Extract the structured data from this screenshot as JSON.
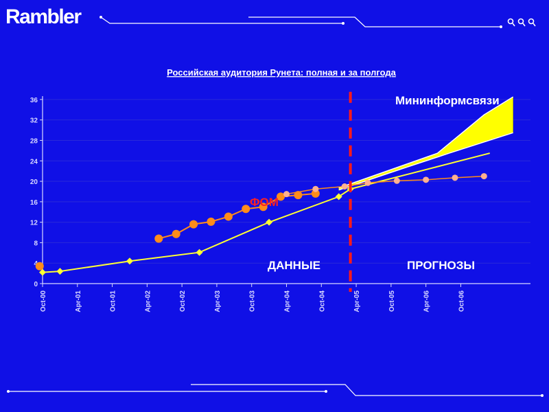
{
  "header": {
    "logo_text": "Rambler"
  },
  "colors": {
    "background": "#1010e6",
    "grid": "#2a2ad8",
    "axis": "#d8d8ff",
    "white_line": "#ffffff",
    "fom_line": "#ff8c1a",
    "fom_marker": "#ff8c1a",
    "fom_forecast_marker": "#ffb090",
    "fom_label": "#ff2020",
    "total_line": "#ffff33",
    "total_marker": "#ffff33",
    "forecast_band_fill": "#ffff00",
    "forecast_divider": "#ff1a1a",
    "title": "#ffffff"
  },
  "chart_data": {
    "type": "line",
    "title": "Российская аудитория Рунета: полная и за полгода",
    "xlabel": "",
    "ylabel": "",
    "ylim": [
      0,
      38
    ],
    "yticks": [
      0,
      4,
      8,
      12,
      16,
      20,
      24,
      28,
      32,
      36
    ],
    "categories": [
      "Oct-00",
      "Apr-01",
      "Oct-01",
      "Apr-02",
      "Oct-02",
      "Apr-03",
      "Oct-03",
      "Apr-04",
      "Oct-04",
      "Apr-05",
      "Oct-05",
      "Apr-06",
      "Oct-06"
    ],
    "grid": true,
    "x_unit": "months since Oct-00",
    "forecast_divider_x": 53,
    "annotations": {
      "fom": "ФОМ",
      "ministry": "Мининформсвязи",
      "data": "ДАННЫЕ",
      "forecast": "ПРОГНОЗЫ"
    },
    "series": [
      {
        "name": "ФОМ",
        "values": [
          [
            -0.5,
            3.4
          ],
          [
            42,
            17.5
          ],
          [
            47,
            18.5
          ],
          [
            52,
            19
          ],
          [
            56,
            19.7
          ],
          [
            61,
            20.1
          ],
          [
            66,
            20.3
          ],
          [
            71,
            20.7
          ],
          [
            76,
            21
          ]
        ]
      },
      {
        "name": "",
        "values": [
          [
            20,
            8.8
          ],
          [
            23,
            9.7
          ],
          [
            26,
            11.6
          ],
          [
            29,
            12.1
          ],
          [
            32,
            13.1
          ],
          [
            35,
            14.6
          ],
          [
            38,
            15
          ],
          [
            41,
            17
          ],
          [
            44,
            17.3
          ],
          [
            47,
            17.6
          ]
        ]
      },
      {
        "name": "",
        "values": [
          [
            0,
            2.2
          ],
          [
            3,
            2.4
          ],
          [
            15,
            4.4
          ],
          [
            27,
            6.1
          ],
          [
            39,
            12
          ],
          [
            51,
            17
          ],
          [
            53,
            18.5
          ],
          [
            65,
            22
          ],
          [
            77,
            25.5
          ]
        ]
      },
      {
        "name": "Мининформсвязи",
        "band_upper": [
          [
            51,
            18.7
          ],
          [
            68,
            25.5
          ],
          [
            76,
            33
          ],
          [
            81,
            36.5
          ]
        ],
        "band_lower": [
          [
            51,
            18.3
          ],
          [
            62,
            22.5
          ],
          [
            70,
            25.5
          ],
          [
            81,
            29.5
          ]
        ]
      }
    ]
  }
}
